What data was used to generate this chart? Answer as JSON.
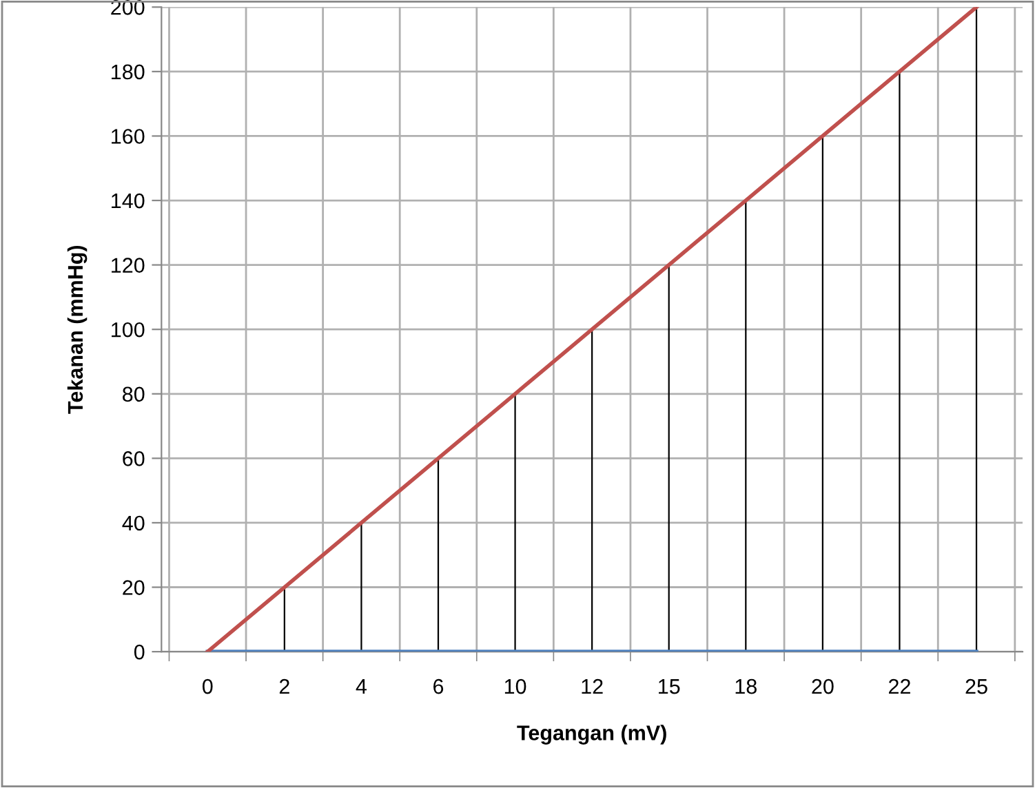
{
  "chart_data": {
    "type": "line",
    "xlabel": "Tegangan (mV)",
    "ylabel": "Tekanan (mmHg)",
    "categories": [
      "0",
      "2",
      "4",
      "6",
      "10",
      "12",
      "15",
      "18",
      "20",
      "22",
      "25"
    ],
    "series": [
      {
        "color": "#4f81bd",
        "values": [
          0,
          0,
          0,
          0,
          0,
          0,
          0,
          0,
          0,
          0,
          0
        ]
      },
      {
        "color": "#c0504d",
        "values": [
          0,
          20,
          40,
          60,
          80,
          100,
          120,
          140,
          160,
          180,
          200
        ],
        "type": "line"
      },
      {
        "color": "#000000",
        "type": "bar",
        "values": [
          0,
          20,
          40,
          60,
          80,
          100,
          120,
          140,
          160,
          180,
          200
        ]
      }
    ],
    "ylim": [
      0,
      200
    ],
    "yticks": [
      0,
      20,
      40,
      60,
      80,
      100,
      120,
      140,
      160,
      180,
      200
    ],
    "grid": true,
    "marker": "none",
    "line_style": "solid"
  }
}
